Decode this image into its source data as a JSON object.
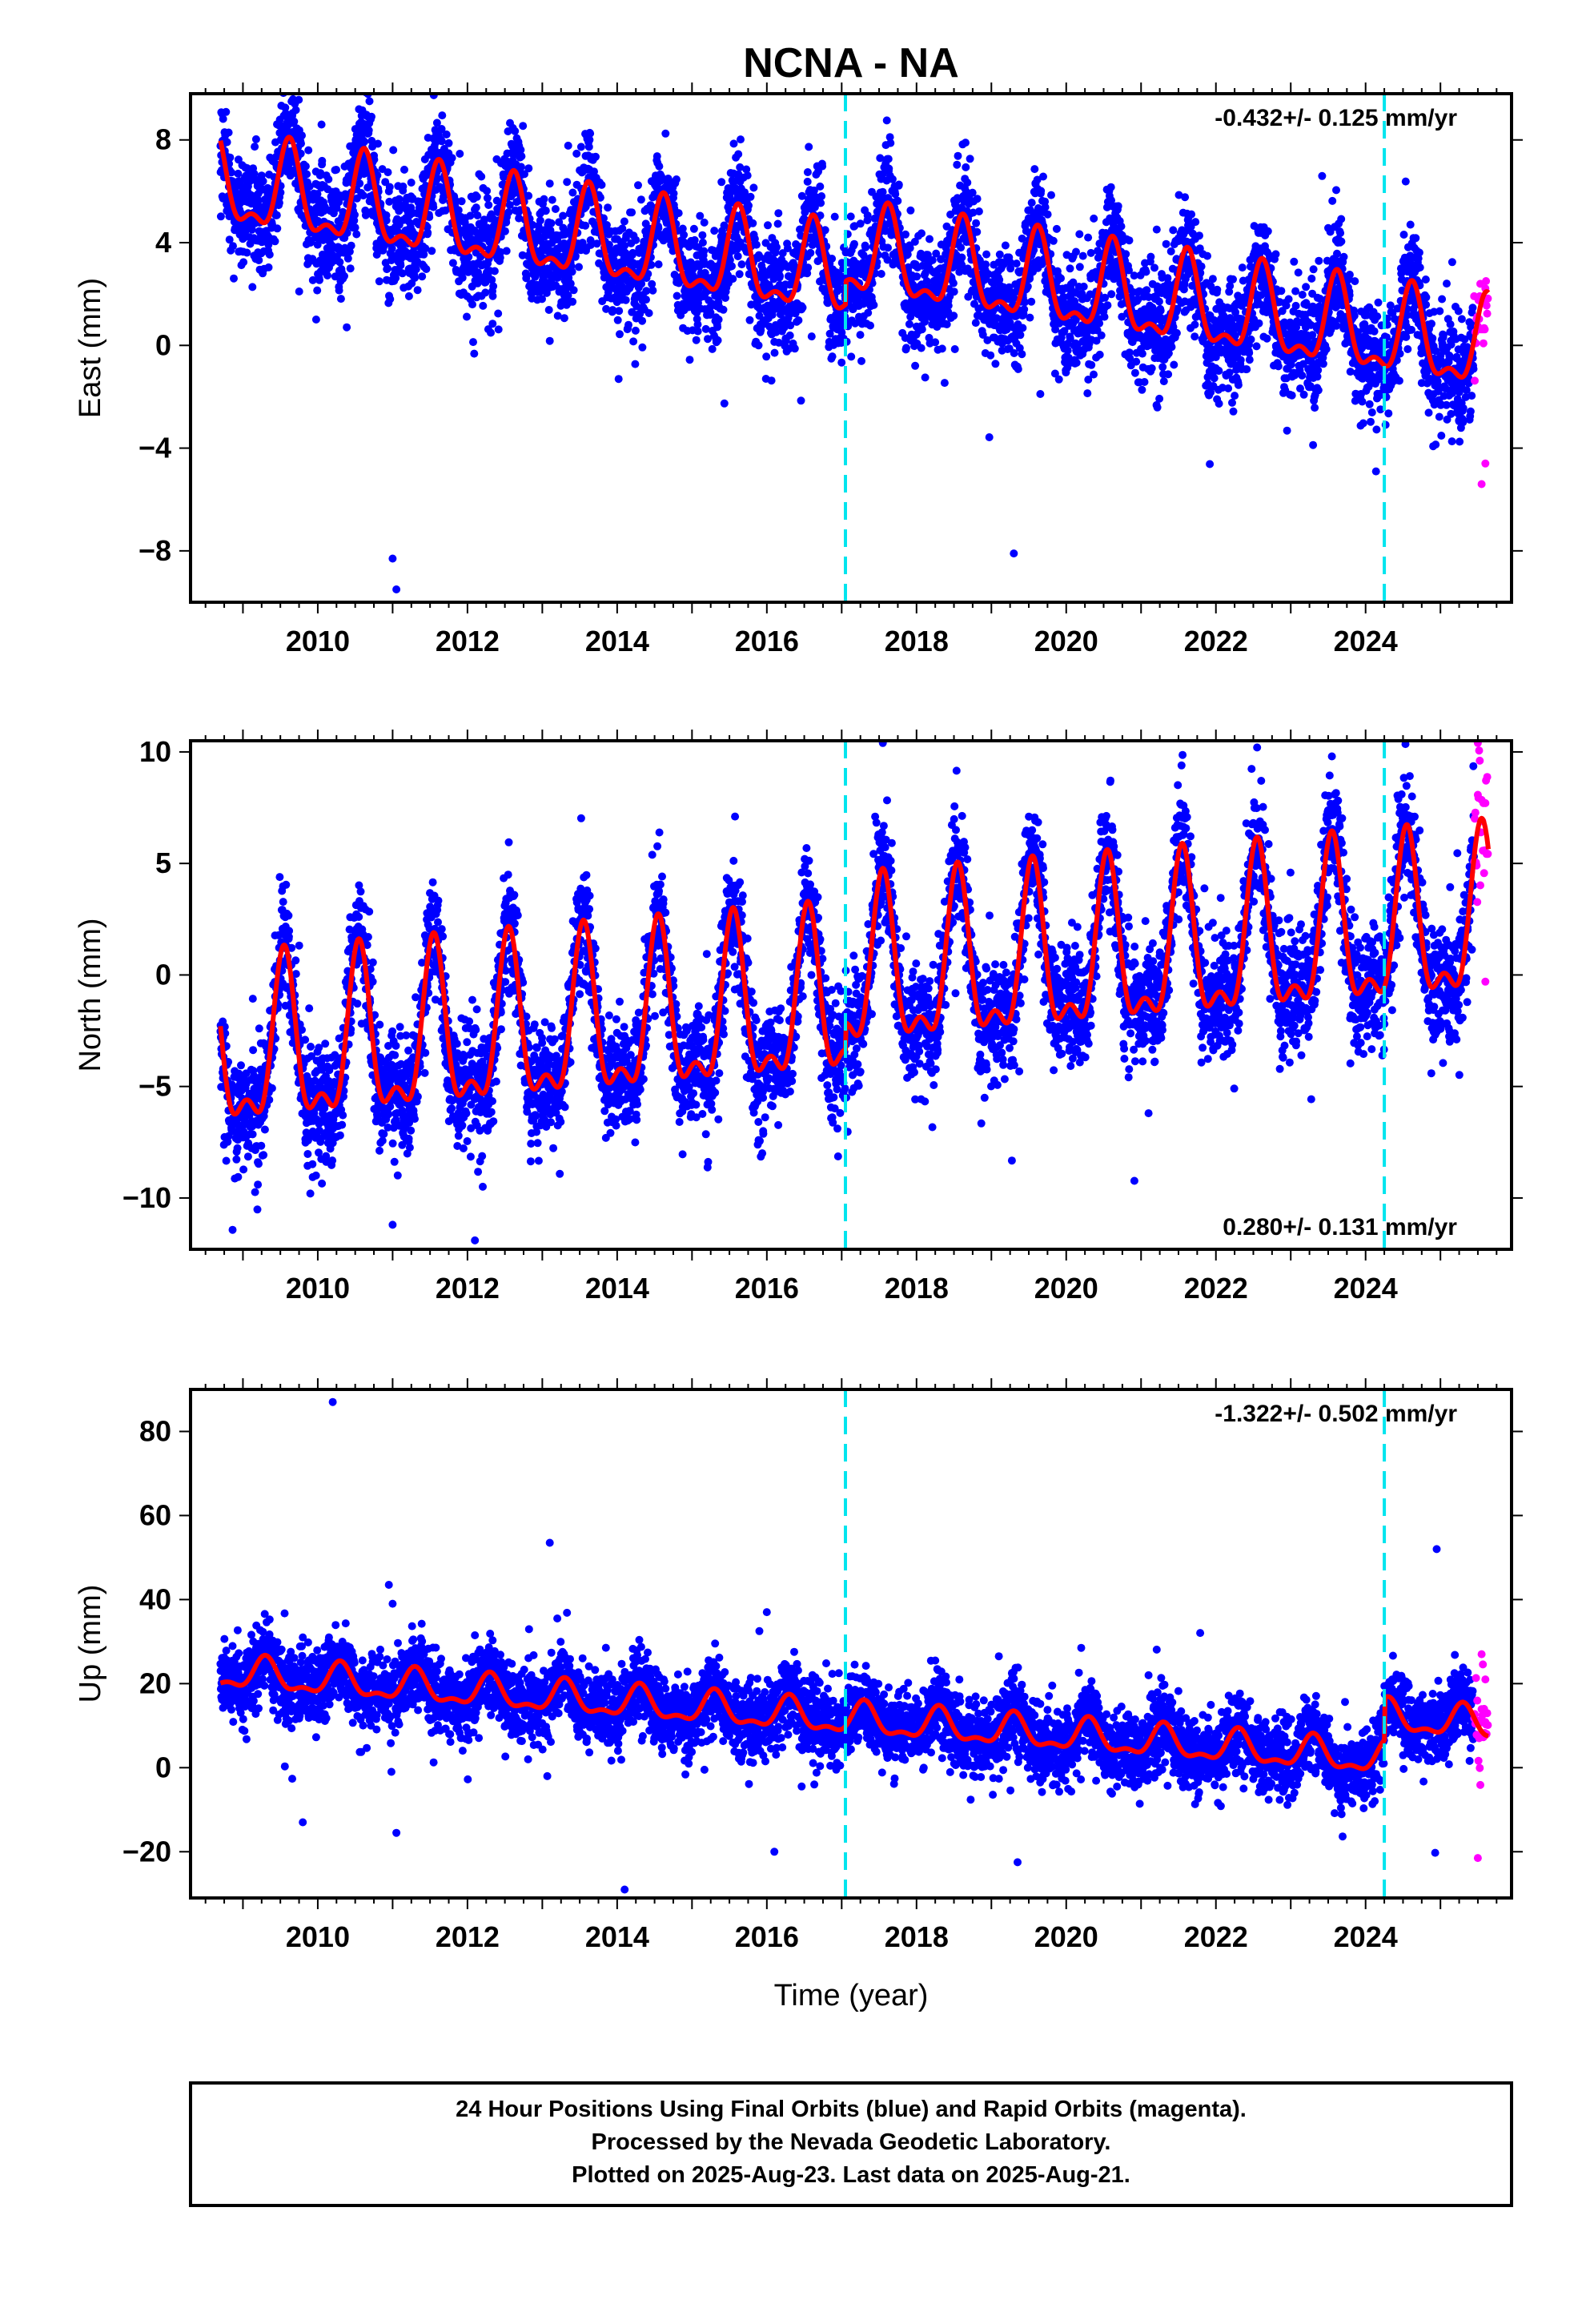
{
  "title": "NCNA - NA",
  "xlabel": "Time (year)",
  "footer": {
    "line1": "24 Hour Positions Using Final Orbits (blue) and Rapid Orbits (magenta).",
    "line2": "Processed by the Nevada Geodetic Laboratory.",
    "line3": "Plotted on 2025-Aug-23. Last data on 2025-Aug-21."
  },
  "chart_data": [
    {
      "type": "scatter",
      "component": "east",
      "ylabel": "East (mm)",
      "rate": "-0.432+/- 0.125 mm/yr",
      "rate_position": "top-right",
      "xlim": [
        2008.3,
        2025.95
      ],
      "ylim": [
        -10,
        9.8
      ],
      "xticks": [
        2010,
        2012,
        2014,
        2016,
        2018,
        2020,
        2022,
        2024
      ],
      "yticks": [
        -8,
        -4,
        0,
        4,
        8
      ],
      "ytick_labels": [
        "−8",
        "−4",
        "0",
        "4",
        "8"
      ],
      "breaks": [
        2017.05,
        2024.25
      ],
      "x_start": 2008.7,
      "x_end_final": 2025.45,
      "x_end": 2025.64,
      "trend": -0.432,
      "offset": 2.6,
      "steps": [
        {
          "x": 2017.05,
          "dy": 0.9
        }
      ],
      "season": {
        "amp": 1.6,
        "peak": 0.62
      },
      "noise": 1.1,
      "series": [
        {
          "name": "Final Orbits",
          "color": "#0000ff"
        },
        {
          "name": "Rapid Orbits",
          "color": "#ff00ff"
        },
        {
          "color": "#ff0000"
        }
      ],
      "outliers": [
        [
          2009.65,
          9.5
        ],
        [
          2009.6,
          8.7
        ],
        [
          2010.05,
          8.6
        ],
        [
          2008.75,
          8.0
        ],
        [
          2010.6,
          7.2
        ],
        [
          2011.0,
          -8.3
        ],
        [
          2011.05,
          -9.5
        ],
        [
          2019.3,
          -8.1
        ],
        [
          2019.55,
          4.9
        ],
        [
          2015.5,
          5.8
        ],
        [
          2013.1,
          6.3
        ],
        [
          2011.6,
          6.5
        ],
        [
          2025.55,
          -5.4
        ],
        [
          2025.6,
          -4.6
        ]
      ]
    },
    {
      "type": "scatter",
      "component": "north",
      "ylabel": "North (mm)",
      "rate": "0.280+/- 0.131 mm/yr",
      "rate_position": "bottom-right",
      "xlim": [
        2008.3,
        2025.95
      ],
      "ylim": [
        -12.3,
        10.5
      ],
      "xticks": [
        2010,
        2012,
        2014,
        2016,
        2018,
        2020,
        2022,
        2024
      ],
      "yticks": [
        -10,
        -5,
        0,
        5,
        10
      ],
      "ytick_labels": [
        "−10",
        "−5",
        "0",
        "5",
        "10"
      ],
      "breaks": [
        2017.05,
        2024.25
      ],
      "x_start": 2008.7,
      "x_end_final": 2025.45,
      "x_end": 2025.64,
      "trend": 0.28,
      "offset": -1.5,
      "steps": [
        {
          "x": 2017.05,
          "dy": 1.2
        }
      ],
      "season": {
        "amp": 3.4,
        "peak": 0.55
      },
      "noise": 1.3,
      "series": [
        {
          "name": "Final Orbits",
          "color": "#0000ff"
        },
        {
          "name": "Rapid Orbits",
          "color": "#ff00ff"
        },
        {
          "color": "#ff0000"
        }
      ],
      "outliers": [
        [
          2011.0,
          -11.2
        ],
        [
          2012.1,
          -11.9
        ],
        [
          2009.2,
          -9.4
        ],
        [
          2009.9,
          -9.8
        ],
        [
          2017.55,
          10.4
        ],
        [
          2022.55,
          10.2
        ],
        [
          2023.55,
          9.8
        ],
        [
          2025.5,
          10.4
        ],
        [
          2021.1,
          -6.2
        ],
        [
          2015.95,
          -7.0
        ],
        [
          2025.6,
          -0.3
        ]
      ]
    },
    {
      "type": "scatter",
      "component": "up",
      "ylabel": "Up (mm)",
      "rate": "-1.322+/- 0.502 mm/yr",
      "rate_position": "top-right",
      "xlim": [
        2008.3,
        2025.95
      ],
      "ylim": [
        -31,
        90
      ],
      "xticks": [
        2010,
        2012,
        2014,
        2016,
        2018,
        2020,
        2022,
        2024
      ],
      "yticks": [
        -20,
        0,
        20,
        40,
        60,
        80
      ],
      "ytick_labels": [
        "−20",
        "0",
        "20",
        "40",
        "60",
        "80"
      ],
      "breaks": [
        2017.05,
        2024.25
      ],
      "x_start": 2008.7,
      "x_end_final": 2025.45,
      "x_end": 2025.64,
      "trend": -1.322,
      "offset": 11.5,
      "steps": [
        {
          "x": 2024.25,
          "dy": 10.0
        }
      ],
      "season": {
        "amp": 3.5,
        "peak": 0.3
      },
      "noise": 4.5,
      "series": [
        {
          "name": "Final Orbits",
          "color": "#0000ff"
        },
        {
          "name": "Rapid Orbits",
          "color": "#ff00ff"
        },
        {
          "color": "#ff0000"
        }
      ],
      "outliers": [
        [
          2010.2,
          87
        ],
        [
          2013.1,
          53.5
        ],
        [
          2024.95,
          52
        ],
        [
          2010.95,
          43.5
        ],
        [
          2011.0,
          39
        ],
        [
          2013.2,
          35.5
        ],
        [
          2016.0,
          37
        ],
        [
          2015.9,
          32.5
        ],
        [
          2009.8,
          31
        ],
        [
          2010.15,
          31
        ],
        [
          2012.1,
          31.5
        ],
        [
          2020.2,
          28.5
        ],
        [
          2021.1,
          22
        ],
        [
          2018.25,
          25.5
        ],
        [
          2019.1,
          26.5
        ],
        [
          2009.8,
          -13
        ],
        [
          2011.05,
          -15.5
        ],
        [
          2014.1,
          -29
        ],
        [
          2016.1,
          -20
        ],
        [
          2019.35,
          -22.5
        ],
        [
          2025.5,
          -21.5
        ],
        [
          2025.55,
          27
        ],
        [
          2025.6,
          21
        ]
      ]
    }
  ]
}
